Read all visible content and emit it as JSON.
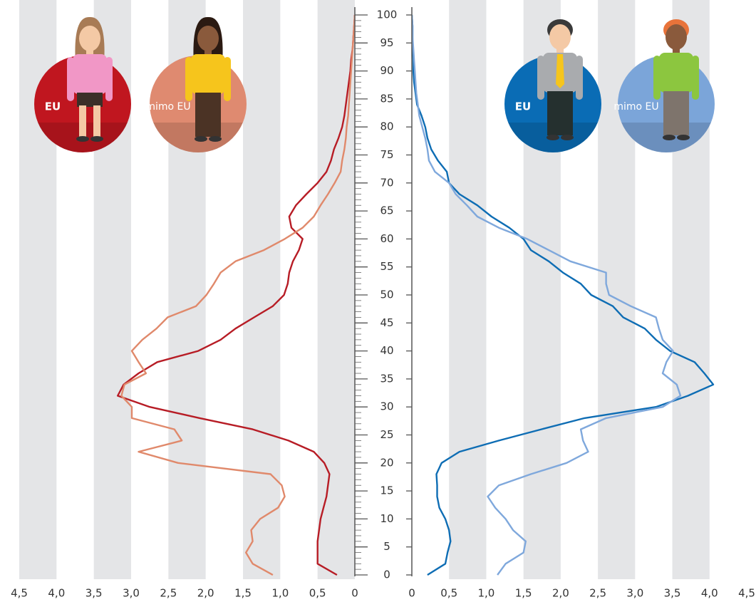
{
  "chart_data": {
    "type": "line",
    "x": [
      0,
      2,
      4,
      6,
      8,
      10,
      12,
      14,
      16,
      18,
      20,
      22,
      24,
      26,
      28,
      30,
      32,
      34,
      36,
      38,
      40,
      42,
      44,
      46,
      48,
      50,
      52,
      54,
      56,
      58,
      60,
      62,
      64,
      66,
      68,
      70,
      72,
      74,
      76,
      78,
      80,
      82,
      84,
      86,
      88,
      90,
      92,
      94,
      96,
      98,
      100
    ],
    "ylim": [
      0,
      100
    ],
    "yticks": [
      0,
      5,
      10,
      15,
      20,
      25,
      30,
      35,
      40,
      45,
      50,
      55,
      60,
      65,
      70,
      75,
      80,
      85,
      90,
      95,
      100
    ],
    "left_xlim": [
      0,
      4.5
    ],
    "left_xticks": [
      {
        "value": 4.5,
        "label": "4,5"
      },
      {
        "value": 4,
        "label": "4,0"
      },
      {
        "value": 3.5,
        "label": "3,5"
      },
      {
        "value": 3,
        "label": "3,0"
      },
      {
        "value": 2.5,
        "label": "2,5"
      },
      {
        "value": 2,
        "label": "2,0"
      },
      {
        "value": 1.5,
        "label": "1,5"
      },
      {
        "value": 1,
        "label": "1,0"
      },
      {
        "value": 0.5,
        "label": "0,5"
      },
      0
    ],
    "right_xlim": [
      0,
      4.5
    ],
    "right_xticks": [
      0,
      {
        "value": 0.5,
        "label": "0,5"
      },
      {
        "value": 1,
        "label": "1,0"
      },
      {
        "value": 1.5,
        "label": "1,5"
      },
      {
        "value": 2,
        "label": "2,0"
      },
      {
        "value": 2.5,
        "label": "2,5"
      },
      {
        "value": 3,
        "label": "3,0"
      },
      {
        "value": 3.5,
        "label": "3,5"
      },
      {
        "value": 4,
        "label": "4,0"
      },
      {
        "value": 4.5,
        "label": "4,5"
      }
    ],
    "series": [
      {
        "name": "EU",
        "side": "left",
        "color": "#b71c25",
        "badge_color": "#c0161f",
        "values": [
          0.24,
          0.5,
          0.5,
          0.5,
          0.48,
          0.46,
          0.42,
          0.38,
          0.36,
          0.34,
          0.41,
          0.55,
          0.89,
          1.37,
          2.08,
          2.75,
          3.18,
          3.1,
          2.9,
          2.65,
          2.1,
          1.8,
          1.6,
          1.35,
          1.1,
          0.95,
          0.9,
          0.88,
          0.83,
          0.75,
          0.7,
          0.85,
          0.88,
          0.79,
          0.65,
          0.5,
          0.38,
          0.32,
          0.28,
          0.22,
          0.17,
          0.14,
          0.12,
          0.1,
          0.08,
          0.06,
          0.05,
          0.03,
          0.02,
          0.01,
          0
        ]
      },
      {
        "name": "mimo EU",
        "side": "left",
        "color": "#e0896b",
        "badge_color": "#df8a70",
        "values": [
          1.1,
          1.37,
          1.46,
          1.37,
          1.39,
          1.27,
          1.03,
          0.94,
          0.98,
          1.13,
          2.37,
          2.9,
          2.32,
          2.42,
          2.99,
          2.99,
          3.13,
          3.09,
          2.8,
          2.9,
          2.99,
          2.85,
          2.66,
          2.51,
          2.13,
          1.99,
          1.89,
          1.8,
          1.6,
          1.22,
          0.94,
          0.7,
          0.55,
          0.46,
          0.36,
          0.27,
          0.19,
          0.17,
          0.14,
          0.12,
          0.11,
          0.09,
          0.08,
          0.07,
          0.06,
          0.05,
          0.04,
          0.03,
          0.02,
          0.01,
          0
        ]
      },
      {
        "name": "EU",
        "side": "right",
        "color": "#0e6db4",
        "badge_color": "#0a6cb5",
        "values": [
          0.21,
          0.45,
          0.48,
          0.52,
          0.5,
          0.45,
          0.37,
          0.34,
          0.34,
          0.33,
          0.4,
          0.64,
          1.17,
          1.74,
          2.32,
          3.28,
          3.71,
          4.05,
          3.93,
          3.8,
          3.47,
          3.28,
          3.13,
          2.84,
          2.7,
          2.41,
          2.27,
          2.03,
          1.84,
          1.6,
          1.5,
          1.31,
          1.07,
          0.88,
          0.64,
          0.5,
          0.47,
          0.35,
          0.26,
          0.21,
          0.18,
          0.13,
          0.07,
          0.05,
          0.03,
          0.02,
          0.02,
          0.01,
          0.01,
          0.01,
          0
        ]
      },
      {
        "name": "mimo EU",
        "side": "right",
        "color": "#7fa8dc",
        "badge_color": "#7ba5d9",
        "values": [
          1.15,
          1.26,
          1.5,
          1.53,
          1.36,
          1.26,
          1.12,
          1.02,
          1.17,
          1.6,
          2.08,
          2.37,
          2.3,
          2.27,
          2.61,
          3.37,
          3.61,
          3.56,
          3.37,
          3.42,
          3.51,
          3.37,
          3.32,
          3.28,
          2.94,
          2.65,
          2.61,
          2.61,
          2.13,
          1.84,
          1.55,
          1.17,
          0.88,
          0.74,
          0.59,
          0.5,
          0.31,
          0.23,
          0.21,
          0.18,
          0.14,
          0.1,
          0.08,
          0.06,
          0.05,
          0.04,
          0.03,
          0.02,
          0.01,
          0.01,
          0
        ]
      }
    ],
    "grid": true
  }
}
